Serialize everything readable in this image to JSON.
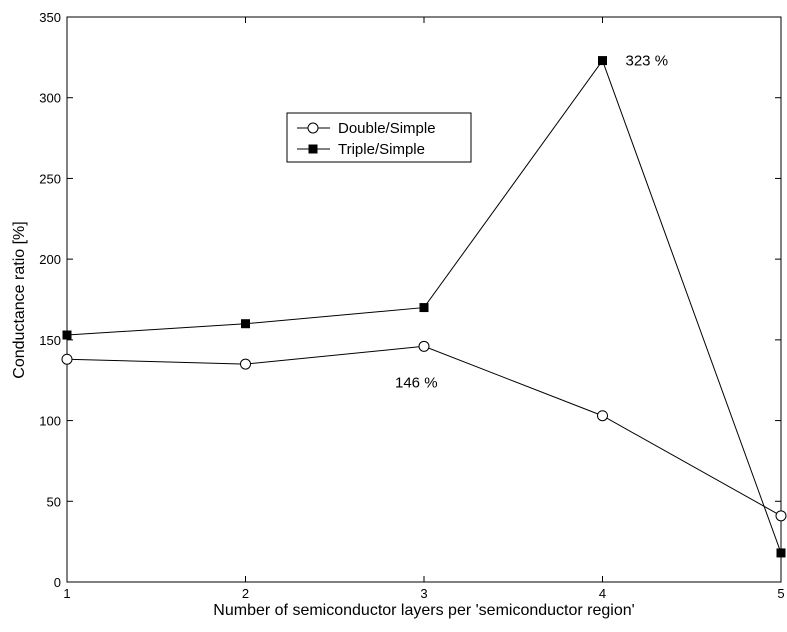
{
  "chart_data": {
    "type": "line",
    "title": "",
    "xlabel": "Number of semiconductor layers per 'semiconductor region'",
    "ylabel": "Conductance ratio [%]",
    "x": [
      1,
      2,
      3,
      4,
      5
    ],
    "xlim": [
      1,
      5
    ],
    "ylim": [
      0,
      350
    ],
    "xticks": [
      "1",
      "2",
      "3",
      "4",
      "5"
    ],
    "yticks": [
      "0",
      "50",
      "100",
      "150",
      "200",
      "250",
      "300",
      "350"
    ],
    "grid": false,
    "legend_position": "upper-center",
    "series": [
      {
        "name": "Double/Simple",
        "marker": "open-circle",
        "values": [
          138,
          135,
          146,
          103,
          41
        ]
      },
      {
        "name": "Triple/Simple",
        "marker": "filled-square",
        "values": [
          153,
          160,
          170,
          323,
          18
        ]
      }
    ],
    "annotations": [
      {
        "text": "146 %",
        "x": 3,
        "y": 146
      },
      {
        "text": "323 %",
        "x": 4,
        "y": 323
      }
    ]
  }
}
